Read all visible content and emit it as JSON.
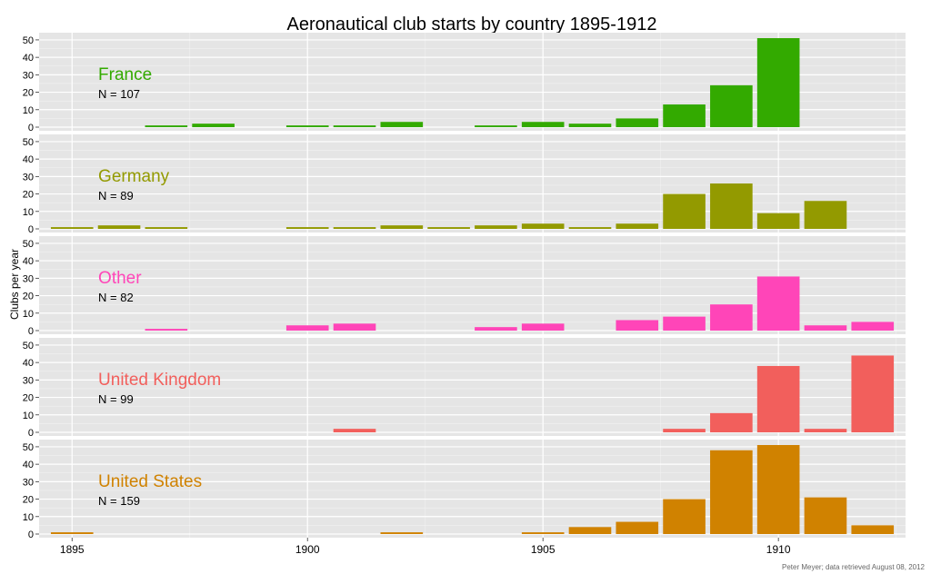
{
  "chart_data": {
    "type": "bar",
    "title": "Aeronautical club starts by country 1895-1912",
    "ylabel": "Clubs per year",
    "xlabel": "",
    "x_ticks": [
      1895,
      1900,
      1905,
      1910
    ],
    "y_ticks": [
      0,
      10,
      20,
      30,
      40,
      50
    ],
    "ylim": [
      0,
      52
    ],
    "xlim": [
      1894.3,
      1912.7
    ],
    "grid": true,
    "facet_direction": "vertical",
    "caption": "Peter Meyer; data retrieved August 08, 2012",
    "years": [
      1895,
      1896,
      1897,
      1898,
      1899,
      1900,
      1901,
      1902,
      1903,
      1904,
      1905,
      1906,
      1907,
      1908,
      1909,
      1910,
      1911,
      1912
    ],
    "series": [
      {
        "name": "France",
        "n_label": "N = 107",
        "color": "#33AA00",
        "values": [
          0,
          0,
          1,
          2,
          0,
          1,
          1,
          3,
          0,
          1,
          3,
          2,
          5,
          13,
          24,
          51,
          0,
          0
        ]
      },
      {
        "name": "Germany",
        "n_label": "N = 89",
        "color": "#939A00",
        "values": [
          1,
          2,
          1,
          0,
          0,
          1,
          1,
          2,
          1,
          2,
          3,
          1,
          3,
          20,
          26,
          9,
          16,
          0
        ]
      },
      {
        "name": "Other",
        "n_label": "N = 82",
        "color": "#FF45B8",
        "values": [
          0,
          0,
          1,
          0,
          0,
          3,
          4,
          0,
          0,
          2,
          4,
          0,
          6,
          8,
          15,
          31,
          3,
          5
        ]
      },
      {
        "name": "United Kingdom",
        "n_label": "N = 99",
        "color": "#F25F5C",
        "values": [
          0,
          0,
          0,
          0,
          0,
          0,
          2,
          0,
          0,
          0,
          0,
          0,
          0,
          2,
          11,
          38,
          2,
          44
        ]
      },
      {
        "name": "United States",
        "n_label": "N = 159",
        "color": "#D08200",
        "values": [
          1,
          0,
          0,
          0,
          0,
          0,
          0,
          1,
          0,
          0,
          1,
          4,
          7,
          20,
          48,
          51,
          21,
          5
        ]
      }
    ]
  }
}
